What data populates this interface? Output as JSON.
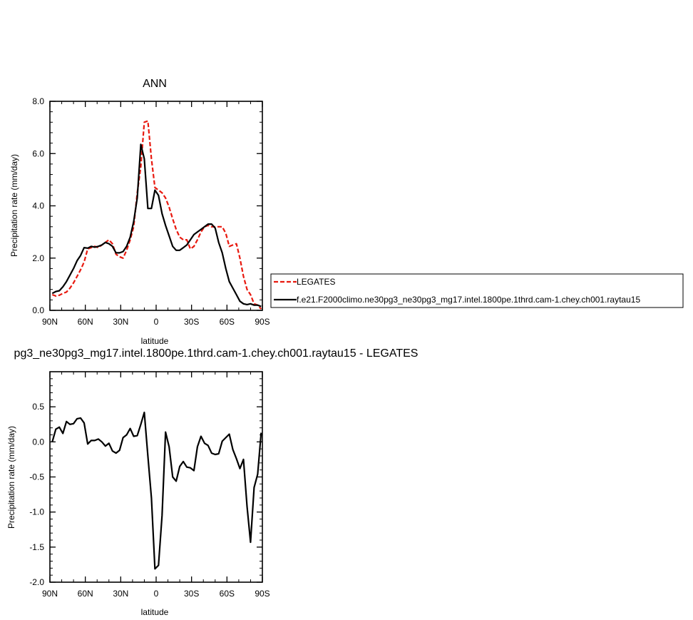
{
  "chart_data": [
    {
      "type": "line",
      "title": "ANN",
      "xlabel": "latitude",
      "ylabel": "Precipitation rate (mm/day)",
      "xlim": [
        90,
        -90
      ],
      "ylim": [
        0,
        8
      ],
      "x_ticks": [
        {
          "value": 90,
          "label": "90N"
        },
        {
          "value": 60,
          "label": "60N"
        },
        {
          "value": 30,
          "label": "30N"
        },
        {
          "value": 0,
          "label": "0"
        },
        {
          "value": -30,
          "label": "30S"
        },
        {
          "value": -60,
          "label": "60S"
        },
        {
          "value": -90,
          "label": "90S"
        }
      ],
      "y_ticks": [
        {
          "value": 0,
          "label": "0.0"
        },
        {
          "value": 2,
          "label": "2.0"
        },
        {
          "value": 4,
          "label": "4.0"
        },
        {
          "value": 6,
          "label": "6.0"
        },
        {
          "value": 8,
          "label": "8.0"
        }
      ],
      "grid": false,
      "legend_position": "right",
      "series": [
        {
          "name": "LEGATES",
          "color": "#e8190f",
          "dash": "dashed",
          "x": [
            88,
            85,
            82,
            79,
            76,
            73,
            70,
            67,
            64,
            61,
            58,
            55,
            52,
            49,
            46,
            43,
            40,
            37,
            34,
            31,
            28,
            25,
            22,
            19,
            16,
            13,
            10,
            7,
            4,
            1,
            -2,
            -5,
            -8,
            -11,
            -14,
            -17,
            -20,
            -23,
            -26,
            -29,
            -32,
            -35,
            -38,
            -41,
            -44,
            -47,
            -50,
            -53,
            -56,
            -59,
            -62,
            -65,
            -68,
            -71,
            -74,
            -77,
            -80,
            -83,
            -86,
            -89
          ],
          "y": [
            0.6,
            0.55,
            0.58,
            0.65,
            0.7,
            0.85,
            1.05,
            1.3,
            1.55,
            1.85,
            2.35,
            2.4,
            2.45,
            2.4,
            2.5,
            2.6,
            2.7,
            2.55,
            2.15,
            2.05,
            2.0,
            2.3,
            2.7,
            3.2,
            4.5,
            5.5,
            7.2,
            7.25,
            5.8,
            4.7,
            4.6,
            4.5,
            4.3,
            3.95,
            3.5,
            3.1,
            2.8,
            2.7,
            2.7,
            2.35,
            2.45,
            2.7,
            3.0,
            3.2,
            3.25,
            3.2,
            3.2,
            3.2,
            3.2,
            2.95,
            2.45,
            2.5,
            2.55,
            2.0,
            1.3,
            0.8,
            0.6,
            0.25,
            0.2,
            0.05
          ]
        },
        {
          "name": "f.e21.F2000climo.ne30pg3_ne30pg3_mg17.intel.1800pe.1thrd.cam-1.chey.ch001.raytau15",
          "color": "#000000",
          "dash": "solid",
          "x": [
            88,
            85,
            82,
            79,
            76,
            73,
            70,
            67,
            64,
            61,
            58,
            55,
            52,
            49,
            46,
            43,
            40,
            37,
            34,
            31,
            28,
            25,
            22,
            19,
            16,
            13,
            10,
            7,
            4,
            1,
            -2,
            -5,
            -8,
            -11,
            -14,
            -17,
            -20,
            -23,
            -26,
            -29,
            -32,
            -35,
            -38,
            -41,
            -44,
            -47,
            -50,
            -53,
            -56,
            -59,
            -62,
            -65,
            -68,
            -71,
            -74,
            -77,
            -80,
            -83,
            -86,
            -89
          ],
          "y": [
            0.65,
            0.72,
            0.75,
            0.9,
            1.1,
            1.35,
            1.6,
            1.9,
            2.1,
            2.4,
            2.38,
            2.45,
            2.42,
            2.45,
            2.5,
            2.6,
            2.55,
            2.45,
            2.2,
            2.2,
            2.25,
            2.45,
            2.8,
            3.4,
            4.3,
            6.35,
            5.8,
            3.9,
            3.9,
            4.6,
            4.4,
            3.7,
            3.25,
            2.85,
            2.45,
            2.3,
            2.3,
            2.4,
            2.5,
            2.7,
            2.9,
            3.0,
            3.1,
            3.2,
            3.3,
            3.3,
            3.15,
            2.6,
            2.2,
            1.6,
            1.1,
            0.85,
            0.6,
            0.35,
            0.25,
            0.22,
            0.25,
            0.2,
            0.2,
            0.15
          ]
        }
      ],
      "legend": {
        "entries": [
          "LEGATES",
          "f.e21.F2000climo.ne30pg3_ne30pg3_mg17.intel.1800pe.1thrd.cam-1.chey.ch001.raytau15"
        ]
      }
    },
    {
      "type": "line",
      "title": "pg3_ne30pg3_mg17.intel.1800pe.1thrd.cam-1.chey.ch001.raytau15 - LEGATES",
      "xlabel": "latitude",
      "ylabel": "Precipitation rate (mm/day)",
      "xlim": [
        90,
        -90
      ],
      "ylim": [
        -2.0,
        1.0
      ],
      "x_ticks": [
        {
          "value": 90,
          "label": "90N"
        },
        {
          "value": 60,
          "label": "60N"
        },
        {
          "value": 30,
          "label": "30N"
        },
        {
          "value": 0,
          "label": "0"
        },
        {
          "value": -30,
          "label": "30S"
        },
        {
          "value": -60,
          "label": "60S"
        },
        {
          "value": -90,
          "label": "90S"
        }
      ],
      "y_ticks": [
        {
          "value": -2.0,
          "label": "-2.0"
        },
        {
          "value": -1.5,
          "label": "-1.5"
        },
        {
          "value": -1.0,
          "label": "-1.0"
        },
        {
          "value": -0.5,
          "label": "-0.5"
        },
        {
          "value": 0.0,
          "label": "0.0"
        },
        {
          "value": 0.5,
          "label": "0.5"
        }
      ],
      "grid": false,
      "series": [
        {
          "color": "#000000",
          "dash": "solid",
          "x": [
            88,
            85,
            82,
            79,
            76,
            73,
            70,
            67,
            64,
            61,
            58,
            55,
            52,
            49,
            46,
            43,
            40,
            37,
            34,
            31,
            28,
            25,
            22,
            19,
            16,
            13,
            10,
            7,
            4,
            1,
            -2,
            -5,
            -8,
            -11,
            -14,
            -17,
            -20,
            -23,
            -26,
            -29,
            -32,
            -35,
            -38,
            -41,
            -44,
            -47,
            -50,
            -53,
            -56,
            -59,
            -62,
            -65,
            -68,
            -71,
            -74,
            -77,
            -80,
            -83,
            -86,
            -89
          ],
          "y": [
            0.0,
            0.18,
            0.21,
            0.12,
            0.29,
            0.25,
            0.26,
            0.33,
            0.34,
            0.27,
            -0.03,
            0.02,
            0.02,
            0.04,
            0.0,
            -0.06,
            -0.02,
            -0.13,
            -0.16,
            -0.12,
            0.06,
            0.1,
            0.19,
            0.08,
            0.09,
            0.25,
            0.42,
            -0.2,
            -0.8,
            -1.81,
            -1.76,
            -1.05,
            0.14,
            -0.07,
            -0.5,
            -0.56,
            -0.35,
            -0.28,
            -0.36,
            -0.37,
            -0.41,
            -0.07,
            0.08,
            -0.02,
            -0.05,
            -0.16,
            -0.18,
            -0.17,
            0.01,
            0.06,
            0.11,
            -0.11,
            -0.24,
            -0.38,
            -0.25,
            -0.92,
            -1.43,
            -0.65,
            -0.46,
            0.13
          ]
        }
      ]
    }
  ]
}
